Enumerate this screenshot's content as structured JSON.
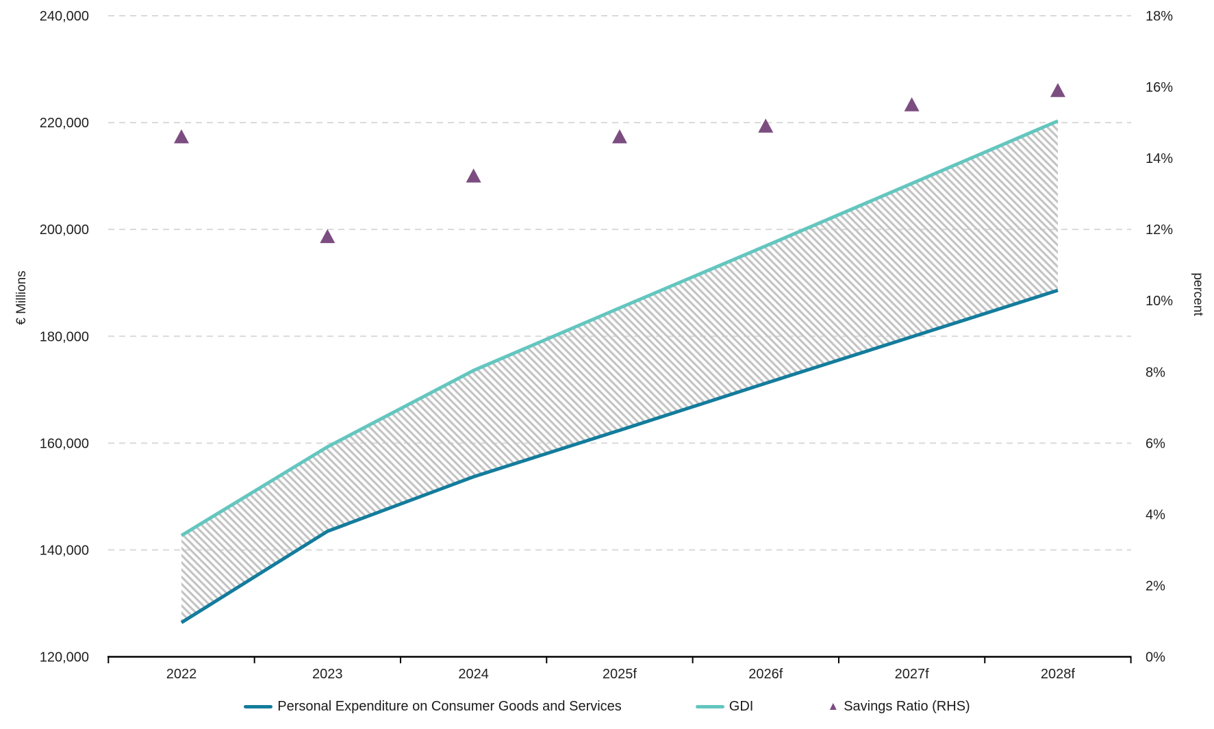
{
  "chart_data": {
    "type": "combo",
    "categories": [
      "2022",
      "2023",
      "2024",
      "2025f",
      "2026f",
      "2027f",
      "2028f"
    ],
    "left_axis": {
      "label": "€ Millions",
      "min": 120000,
      "max": 240000,
      "step": 20000,
      "tick_format": "thousands-comma"
    },
    "right_axis": {
      "label": "percent",
      "min": 0,
      "max": 18,
      "step": 2,
      "suffix": "%"
    },
    "grid": {
      "style": "dashed",
      "color": "#D9D9D9",
      "on": "left-axis-ticks"
    },
    "series": [
      {
        "name": "Personal Expenditure on Consumer Goods and Services",
        "type": "line",
        "axis": "left",
        "color": "#147C9C",
        "values": [
          126400,
          143500,
          153700,
          162400,
          171200,
          179900,
          188600
        ]
      },
      {
        "name": "GDI",
        "type": "line",
        "axis": "left",
        "color": "#63C6BF",
        "values": [
          142700,
          159300,
          173600,
          185300,
          196900,
          208600,
          220300
        ]
      },
      {
        "name": "Savings Ratio (RHS)",
        "type": "scatter-triangle",
        "axis": "right",
        "color": "#7C4D80",
        "values": [
          14.6,
          11.8,
          13.5,
          14.6,
          14.9,
          15.5,
          15.9
        ]
      }
    ],
    "band": {
      "between": [
        "GDI",
        "Personal Expenditure on Consumer Goods and Services"
      ],
      "style": "diagonal-hatch",
      "hatch_color": "#C4C4C4"
    },
    "legend_position": "bottom",
    "axis_color": "#000000",
    "text_color": "#1f1f1f"
  }
}
